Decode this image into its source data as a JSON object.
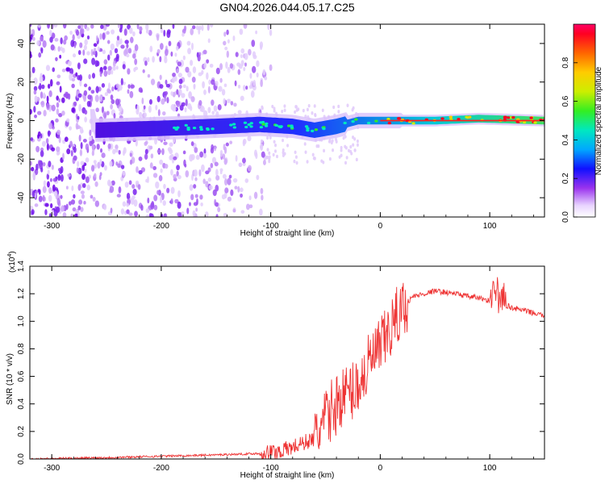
{
  "title": "GN04.2026.044.05.17.C25",
  "chart_data": [
    {
      "type": "heatmap",
      "name": "spectrogram",
      "xlabel": "Height of straight line (km)",
      "ylabel": "Frequency (Hz)",
      "xlim": [
        -320,
        150
      ],
      "ylim": [
        -50,
        50
      ],
      "xticks": [
        -300,
        -200,
        -100,
        0,
        100
      ],
      "yticks": [
        -40,
        -20,
        0,
        20,
        40
      ],
      "colorbar": {
        "label": "Normalized spectral amplitude",
        "range": [
          0.0,
          1.0
        ],
        "ticks": [
          0.0,
          0.2,
          0.4,
          0.6,
          0.8
        ]
      },
      "signal_ridge": [
        {
          "x": -260,
          "f": -5
        },
        {
          "x": -200,
          "f": -4
        },
        {
          "x": -150,
          "f": -3
        },
        {
          "x": -110,
          "f": -2
        },
        {
          "x": -80,
          "f": -3
        },
        {
          "x": -60,
          "f": -5
        },
        {
          "x": -40,
          "f": -3
        },
        {
          "x": -20,
          "f": 0
        },
        {
          "x": 0,
          "f": 0
        },
        {
          "x": 50,
          "f": 0
        },
        {
          "x": 90,
          "f": 1
        },
        {
          "x": 150,
          "f": 0
        }
      ]
    },
    {
      "type": "line",
      "name": "snr",
      "xlabel": "Height of straight line (km)",
      "ylabel": "SNR (10 * v/v)",
      "multiplier": "(x10",
      "multiplier_exp": "4",
      "multiplier_close": ")",
      "xlim": [
        -320,
        150
      ],
      "ylim": [
        0.0,
        1.4
      ],
      "xticks": [
        -300,
        -200,
        -100,
        0,
        100
      ],
      "yticks": [
        0.0,
        0.2,
        0.4,
        0.6,
        0.8,
        1.0,
        1.2,
        1.4
      ],
      "series": [
        {
          "name": "SNR",
          "color": "#ee3333",
          "x": [
            -320,
            -250,
            -200,
            -150,
            -110,
            -90,
            -75,
            -60,
            -45,
            -35,
            -25,
            -15,
            -10,
            -5,
            0,
            10,
            20,
            30,
            40,
            50,
            60,
            70,
            80,
            90,
            100,
            110,
            120,
            130,
            140,
            150
          ],
          "y": [
            0.0,
            0.01,
            0.02,
            0.03,
            0.04,
            0.06,
            0.1,
            0.15,
            0.35,
            0.45,
            0.5,
            0.6,
            0.7,
            0.75,
            0.8,
            0.95,
            1.1,
            1.18,
            1.2,
            1.22,
            1.21,
            1.2,
            1.18,
            1.17,
            1.15,
            1.13,
            1.1,
            1.08,
            1.06,
            1.04
          ]
        }
      ]
    }
  ]
}
